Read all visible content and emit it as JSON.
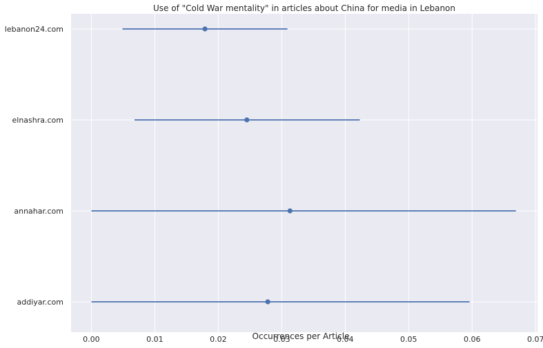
{
  "chart_data": {
    "type": "errorbar",
    "title": "Use of \"Cold War mentality\" in articles about China for media in Lebanon",
    "xlabel": "Occurrences per Article",
    "ylabel": "",
    "xlim": [
      -0.0032,
      0.0703
    ],
    "xticks": [
      0.0,
      0.01,
      0.02,
      0.03,
      0.04,
      0.05,
      0.06,
      0.07
    ],
    "xtick_labels": [
      "0.00",
      "0.01",
      "0.02",
      "0.03",
      "0.04",
      "0.05",
      "0.06",
      "0.07"
    ],
    "categories": [
      "lebanon24.com",
      "elnashra.com",
      "annahar.com",
      "addiyar.com"
    ],
    "values": [
      0.0179,
      0.0245,
      0.0313,
      0.0278
    ],
    "ci_low": [
      0.0049,
      0.0068,
      0.0,
      0.0
    ],
    "ci_high": [
      0.0309,
      0.0423,
      0.0669,
      0.0596
    ],
    "grid": true,
    "colors": {
      "plot_background": "#eaeaf2",
      "grid": "#ffffff",
      "series": "#4c72b0",
      "text": "#262626"
    }
  }
}
